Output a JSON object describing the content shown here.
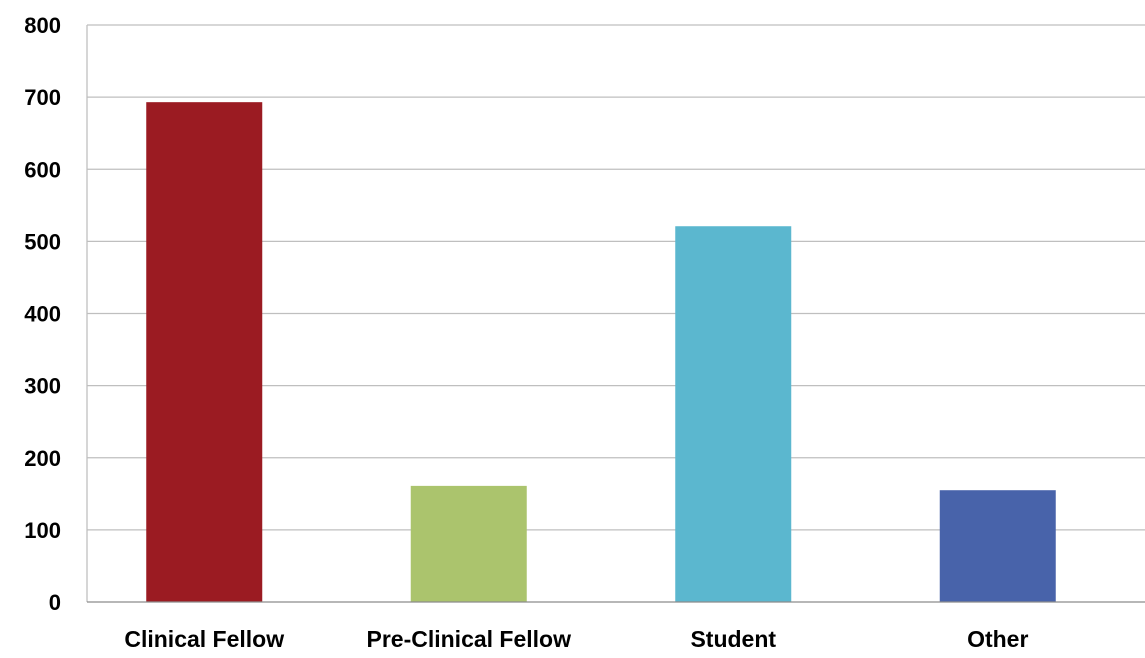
{
  "chart_data": {
    "type": "bar",
    "title": "",
    "xlabel": "",
    "ylabel": "",
    "categories": [
      "Clinical Fellow",
      "Pre-Clinical Fellow",
      "Student",
      "Other"
    ],
    "values": [
      693,
      161,
      521,
      155
    ],
    "colors": [
      "#9b1b22",
      "#abc46d",
      "#5bb7cf",
      "#4863aa"
    ],
    "ylim": [
      0,
      800
    ],
    "yticks": [
      0,
      100,
      200,
      300,
      400,
      500,
      600,
      700,
      800
    ],
    "grid": true,
    "legend": "none"
  }
}
